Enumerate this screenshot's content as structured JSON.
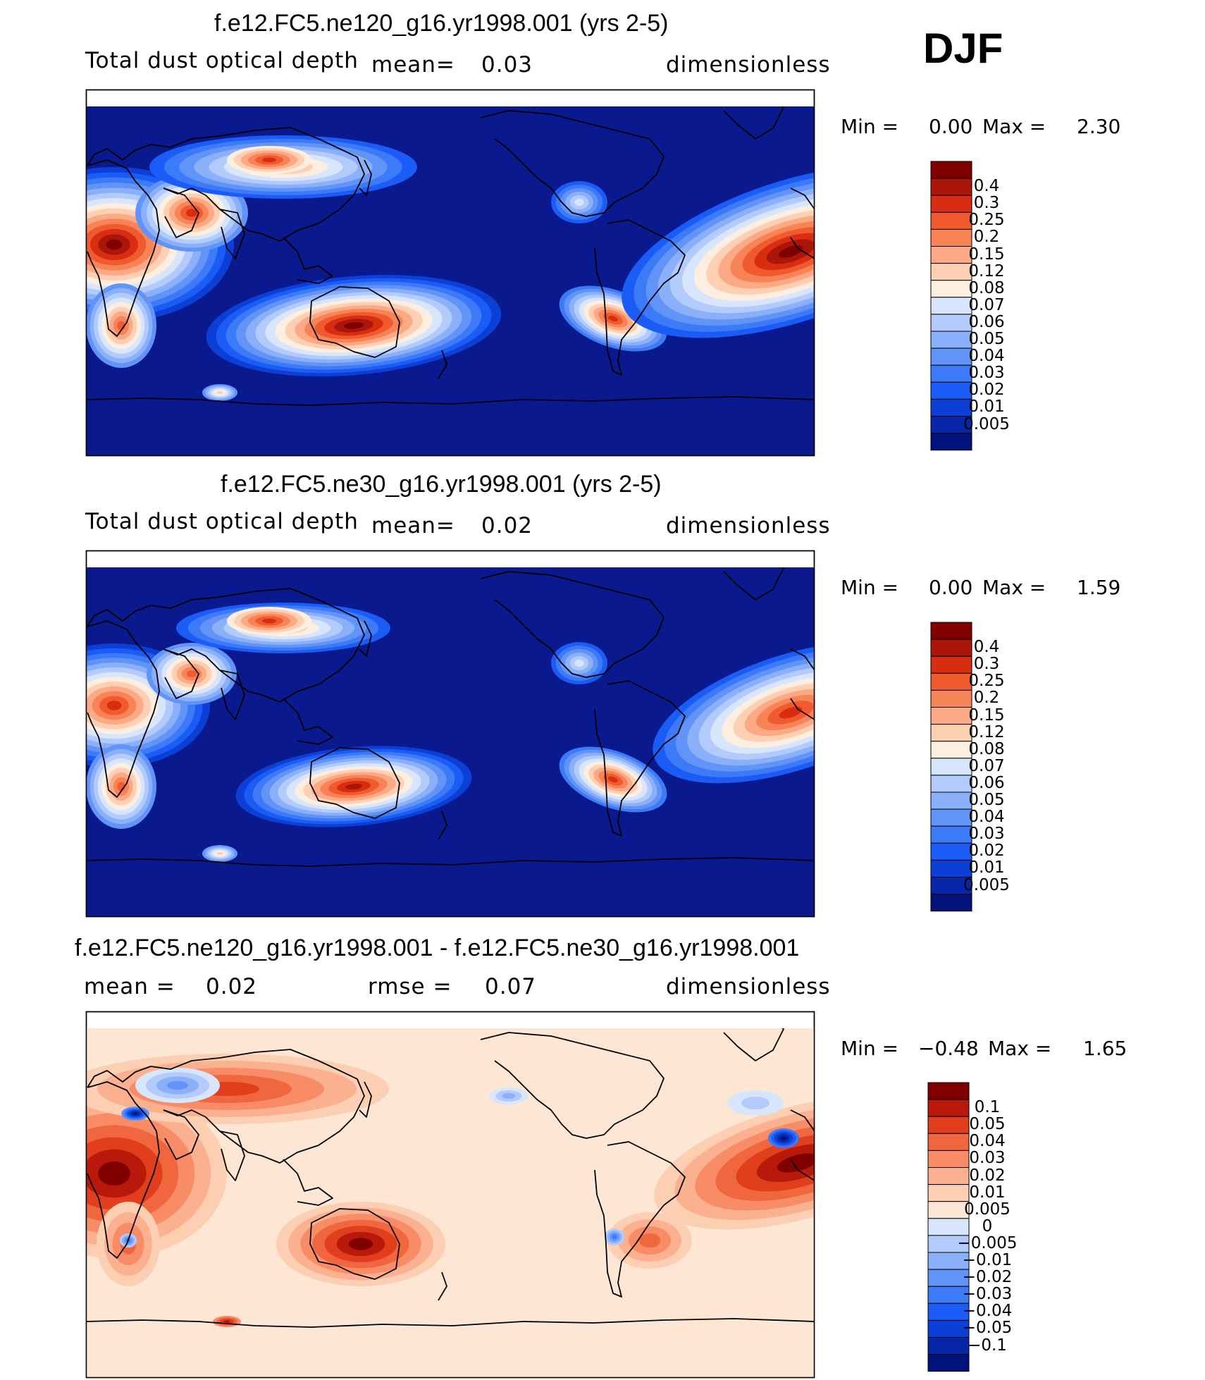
{
  "season": "DJF",
  "colors": {
    "ocean_blue": "#0a1a8e",
    "diff_background": "#fde6d3",
    "seq_colorbar": [
      "#00137a",
      "#0626a8",
      "#0b3fd6",
      "#1a5cf5",
      "#3d7af7",
      "#6294f8",
      "#8bb0fa",
      "#b3cbfc",
      "#d8e6fd",
      "#fdeedf",
      "#fdd0b4",
      "#fcaa85",
      "#f88357",
      "#ef5a2f",
      "#d92d12",
      "#ab150a",
      "#800000"
    ],
    "div_colorbar": [
      "#00137a",
      "#0626a8",
      "#0b3fd6",
      "#1a5cf5",
      "#3d7af7",
      "#6294f8",
      "#8bb0fa",
      "#b3cbfc",
      "#d8e6fd",
      "#fde6d3",
      "#fccfb3",
      "#fbb090",
      "#f88c66",
      "#f0663e",
      "#e03e1c",
      "#b8190b",
      "#800000"
    ]
  },
  "chart_data": [
    {
      "type": "heatmap",
      "title": "f.e12.FC5.ne120_g16.yr1998.001 (yrs 2-5)",
      "variable": "Total dust optical depth",
      "mean_label": "mean=",
      "mean": "0.03",
      "units": "dimensionless",
      "min_label": "Min =",
      "min": "0.00",
      "max_label": "Max =",
      "max": "2.30",
      "levels": [
        "0.4",
        "0.3",
        "0.25",
        "0.2",
        "0.15",
        "0.12",
        "0.08",
        "0.07",
        "0.06",
        "0.05",
        "0.04",
        "0.03",
        "0.02",
        "0.01",
        "0.005"
      ]
    },
    {
      "type": "heatmap",
      "title": "f.e12.FC5.ne30_g16.yr1998.001 (yrs 2-5)",
      "variable": "Total dust optical depth",
      "mean_label": "mean=",
      "mean": "0.02",
      "units": "dimensionless",
      "min_label": "Min =",
      "min": "0.00",
      "max_label": "Max =",
      "max": "1.59",
      "levels": [
        "0.4",
        "0.3",
        "0.25",
        "0.2",
        "0.15",
        "0.12",
        "0.08",
        "0.07",
        "0.06",
        "0.05",
        "0.04",
        "0.03",
        "0.02",
        "0.01",
        "0.005"
      ]
    },
    {
      "type": "heatmap",
      "title": "f.e12.FC5.ne120_g16.yr1998.001 - f.e12.FC5.ne30_g16.yr1998.001",
      "mean_label": "mean =",
      "mean": "0.02",
      "rmse_label": "rmse =",
      "rmse": "0.07",
      "units": "dimensionless",
      "min_label": "Min =",
      "min": "−0.48",
      "max_label": "Max =",
      "max": "1.65",
      "levels": [
        "0.1",
        "0.05",
        "0.04",
        "0.03",
        "0.02",
        "0.01",
        "0.005",
        "0",
        "−0.005",
        "−0.01",
        "−0.02",
        "−0.03",
        "−0.04",
        "−0.05",
        "−0.1"
      ]
    }
  ]
}
